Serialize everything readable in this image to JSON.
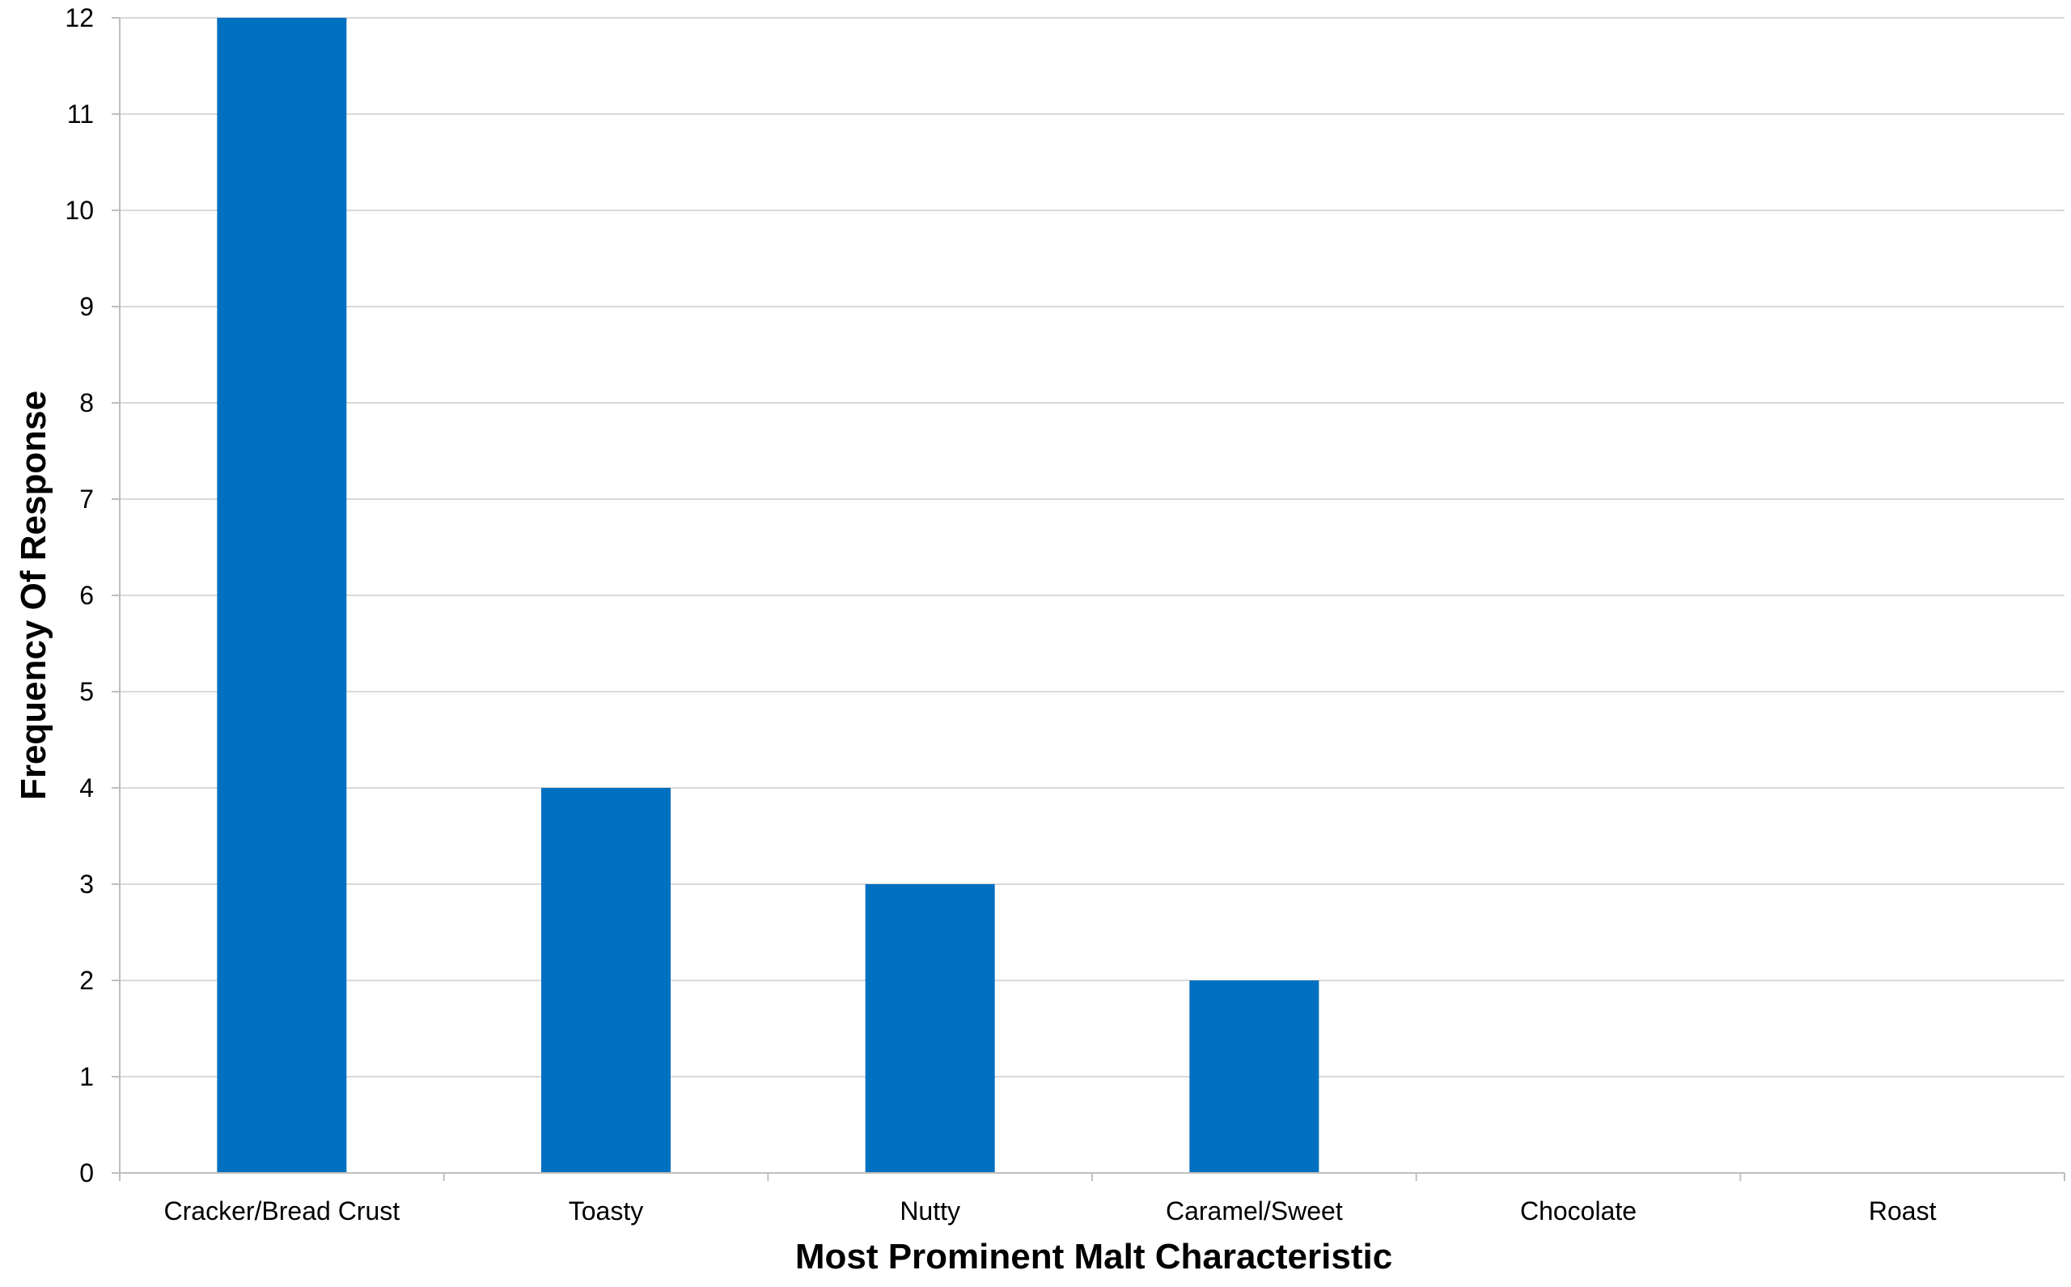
{
  "colors": {
    "bar": "#0070C0",
    "grid": "#d9d9d9",
    "axis": "#bfbfbf",
    "text": "#000000",
    "background": "#ffffff"
  },
  "chart_data": {
    "type": "bar",
    "title": "",
    "xlabel": "Most Prominent Malt Characteristic",
    "ylabel": "Frequency Of Response",
    "categories": [
      "Cracker/Bread Crust",
      "Toasty",
      "Nutty",
      "Caramel/Sweet",
      "Chocolate",
      "Roast"
    ],
    "values": [
      12,
      4,
      3,
      2,
      0,
      0
    ],
    "ylim": [
      0,
      12
    ],
    "yticks": [
      0,
      1,
      2,
      3,
      4,
      5,
      6,
      7,
      8,
      9,
      10,
      11,
      12
    ],
    "grid": true,
    "legend": "none"
  }
}
